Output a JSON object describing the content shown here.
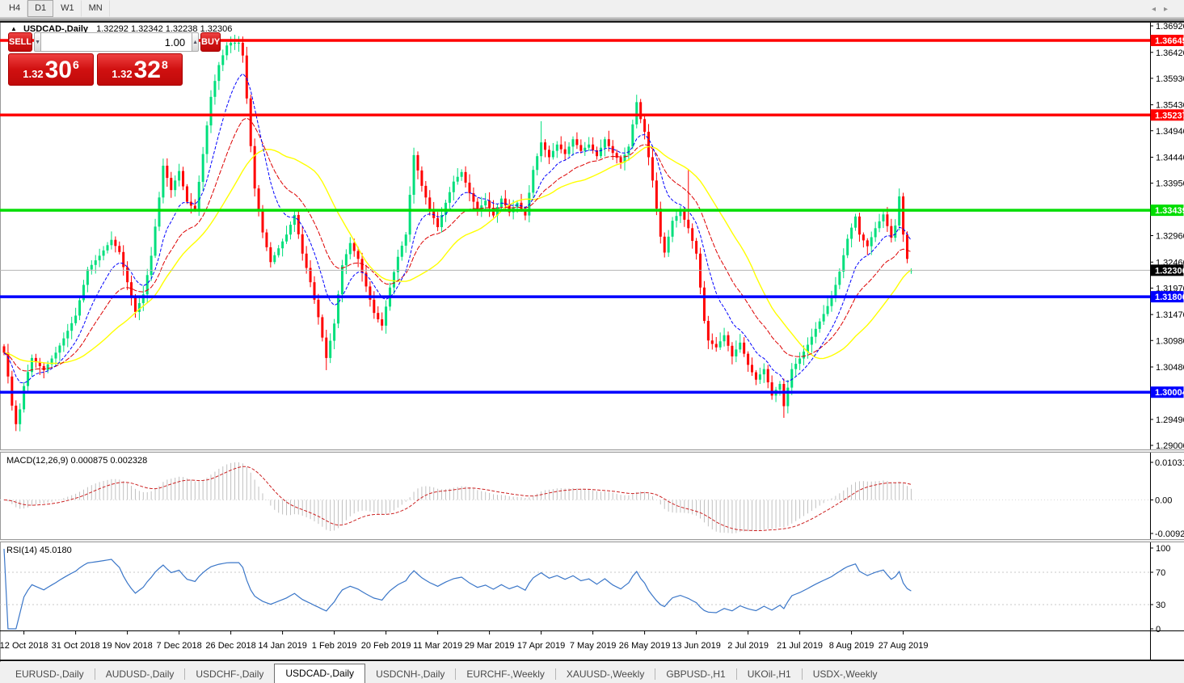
{
  "toolbar": {
    "timeframes": [
      {
        "label": "H4",
        "active": false
      },
      {
        "label": "D1",
        "active": true
      },
      {
        "label": "W1",
        "active": false
      },
      {
        "label": "MN",
        "active": false
      }
    ]
  },
  "chart": {
    "title_symbol": "USDCAD-,Daily",
    "title_ohlc": "1.32292 1.32342 1.32238 1.32306",
    "title_arrow": "▲"
  },
  "trade_panel": {
    "sell_label": "SELL",
    "buy_label": "BUY",
    "volume": "1.00",
    "spin_down": "▼",
    "spin_up": "▲",
    "sell_price": {
      "small": "1.32",
      "big": "30",
      "sup": "6"
    },
    "buy_price": {
      "small": "1.32",
      "big": "32",
      "sup": "8"
    }
  },
  "indicators": {
    "macd_label": "MACD(12,26,9) 0.000875 0.002328",
    "rsi_label": "RSI(14) 45.0180"
  },
  "colors": {
    "up_candle": "#00DF7C",
    "down_candle": "#FF0000",
    "ma_fast": "#0000FF",
    "ma_mid": "#DD0000",
    "ma_slow": "#FFFF00",
    "bid_line": "#B4B4B4",
    "macd_hist": "#C0C0C0",
    "macd_signal": "#CC2222",
    "rsi_line": "#3A76C8",
    "level_red": "#FF0000",
    "level_green": "#00DD00",
    "level_blue": "#0000FF",
    "bid_label_bg": "#000000"
  },
  "chart_data": {
    "type": "candlestick",
    "symbol": "USDCAD-,Daily",
    "last_candle": {
      "open": 1.32292,
      "high": 1.32342,
      "low": 1.32238,
      "close": 1.32306
    },
    "price_axis": {
      "top_value": 1.3692,
      "bottom_value": 1.29,
      "ticks": [
        "1.36920",
        "1.36420",
        "1.35930",
        "1.35430",
        "1.34940",
        "1.34440",
        "1.33950",
        "1.32960",
        "1.32460",
        "1.31970",
        "1.31470",
        "1.30980",
        "1.30480",
        "1.29490",
        "1.29000"
      ]
    },
    "levels": [
      {
        "price": 1.36645,
        "label": "1.36645",
        "color": "#FF0000",
        "name": "resistance-line-1"
      },
      {
        "price": 1.35237,
        "label": "1.35237",
        "color": "#FF0000",
        "name": "resistance-line-2"
      },
      {
        "price": 1.33439,
        "label": "1.33439",
        "color": "#00DD00",
        "name": "pivot-line"
      },
      {
        "price": 1.31806,
        "label": "1.31806",
        "color": "#0000FF",
        "name": "support-line-1"
      },
      {
        "price": 1.30004,
        "label": "1.30004",
        "color": "#0000FF",
        "name": "support-line-2"
      }
    ],
    "bid": {
      "price": 1.32306,
      "label": "1.32306"
    },
    "date_ticks": [
      {
        "i": 5,
        "label": "12 Oct 2018"
      },
      {
        "i": 18,
        "label": "31 Oct 2018"
      },
      {
        "i": 31,
        "label": "19 Nov 2018"
      },
      {
        "i": 44,
        "label": "7 Dec 2018"
      },
      {
        "i": 57,
        "label": "26 Dec 2018"
      },
      {
        "i": 70,
        "label": "14 Jan 2019"
      },
      {
        "i": 83,
        "label": "1 Feb 2019"
      },
      {
        "i": 96,
        "label": "20 Feb 2019"
      },
      {
        "i": 109,
        "label": "11 Mar 2019"
      },
      {
        "i": 122,
        "label": "29 Mar 2019"
      },
      {
        "i": 135,
        "label": "17 Apr 2019"
      },
      {
        "i": 148,
        "label": "7 May 2019"
      },
      {
        "i": 161,
        "label": "26 May 2019"
      },
      {
        "i": 174,
        "label": "13 Jun 2019"
      },
      {
        "i": 187,
        "label": "2 Jul 2019"
      },
      {
        "i": 200,
        "label": "21 Jul 2019"
      },
      {
        "i": 213,
        "label": "8 Aug 2019"
      },
      {
        "i": 226,
        "label": "27 Aug 2019"
      }
    ],
    "macd_axis": {
      "top": "0.010311",
      "zero": "0.00",
      "bottom": "-0.009203",
      "top_value": 0.010311,
      "bottom_value": -0.009203
    },
    "rsi_axis": {
      "ticks": [
        "100",
        "70",
        "30",
        "0"
      ],
      "upper": 70,
      "lower": 30
    },
    "waypoints": [
      [
        0,
        1.3075
      ],
      [
        1,
        1.303
      ],
      [
        2,
        1.2975
      ],
      [
        3,
        1.294,
        null,
        1.2927
      ],
      [
        4,
        1.2968
      ],
      [
        5,
        1.3012
      ],
      [
        7,
        1.3065
      ],
      [
        10,
        1.3042
      ],
      [
        13,
        1.3075
      ],
      [
        15,
        1.3102
      ],
      [
        18,
        1.3145
      ],
      [
        21,
        1.3232
      ],
      [
        24,
        1.3258
      ],
      [
        27,
        1.3288
      ],
      [
        29,
        1.3265
      ],
      [
        31,
        1.3208
      ],
      [
        33,
        1.3152
      ],
      [
        35,
        1.3185
      ],
      [
        37,
        1.3258
      ],
      [
        39,
        1.3368
      ],
      [
        40,
        1.3428
      ],
      [
        42,
        1.3382
      ],
      [
        44,
        1.3418
      ],
      [
        46,
        1.336
      ],
      [
        48,
        1.3345
      ],
      [
        50,
        1.345
      ],
      [
        52,
        1.3558
      ],
      [
        54,
        1.3618
      ],
      [
        56,
        1.3655
      ],
      [
        57,
        1.366,
        1.3672
      ],
      [
        59,
        1.366
      ],
      [
        60,
        1.3636
      ],
      [
        61,
        1.3555
      ],
      [
        62,
        1.3465
      ],
      [
        63,
        1.3385
      ],
      [
        65,
        1.3302
      ],
      [
        67,
        1.3246
      ],
      [
        69,
        1.3272
      ],
      [
        71,
        1.3298
      ],
      [
        73,
        1.3335
      ],
      [
        75,
        1.3262
      ],
      [
        77,
        1.3208
      ],
      [
        79,
        1.3142
      ],
      [
        81,
        1.3065,
        null,
        1.3042
      ],
      [
        83,
        1.313
      ],
      [
        85,
        1.324
      ],
      [
        87,
        1.3282
      ],
      [
        89,
        1.3252
      ],
      [
        91,
        1.32
      ],
      [
        93,
        1.315
      ],
      [
        95,
        1.3126
      ],
      [
        97,
        1.3198
      ],
      [
        99,
        1.3256
      ],
      [
        101,
        1.3298
      ],
      [
        103,
        1.3448,
        1.3462
      ],
      [
        105,
        1.339
      ],
      [
        107,
        1.3346
      ],
      [
        109,
        1.3312
      ],
      [
        111,
        1.3358
      ],
      [
        113,
        1.3398
      ],
      [
        115,
        1.3416
      ],
      [
        117,
        1.3376
      ],
      [
        119,
        1.3344
      ],
      [
        121,
        1.3362
      ],
      [
        123,
        1.3334
      ],
      [
        125,
        1.3366
      ],
      [
        127,
        1.334
      ],
      [
        129,
        1.3358
      ],
      [
        131,
        1.3334
      ],
      [
        133,
        1.342
      ],
      [
        135,
        1.3472,
        1.3512
      ],
      [
        137,
        1.3444
      ],
      [
        139,
        1.3468
      ],
      [
        141,
        1.345
      ],
      [
        143,
        1.3478
      ],
      [
        145,
        1.3456
      ],
      [
        147,
        1.3468
      ],
      [
        149,
        1.3446
      ],
      [
        151,
        1.3478
      ],
      [
        153,
        1.3452
      ],
      [
        155,
        1.3434
      ],
      [
        157,
        1.3464
      ],
      [
        159,
        1.3548,
        1.3562
      ],
      [
        160,
        1.3516
      ],
      [
        161,
        1.3492
      ],
      [
        162,
        1.3444
      ],
      [
        163,
        1.34
      ],
      [
        165,
        1.3294
      ],
      [
        166,
        1.3264
      ],
      [
        168,
        1.3324
      ],
      [
        170,
        1.3342
      ],
      [
        172,
        1.331,
        1.342
      ],
      [
        174,
        1.3262
      ],
      [
        175,
        1.3198
      ],
      [
        176,
        1.3135
      ],
      [
        177,
        1.3098
      ],
      [
        179,
        1.3085
      ],
      [
        181,
        1.3108
      ],
      [
        183,
        1.3068
      ],
      [
        185,
        1.3094
      ],
      [
        187,
        1.3052
      ],
      [
        189,
        1.3024
      ],
      [
        191,
        1.3044
      ],
      [
        193,
        1.2994
      ],
      [
        195,
        1.3016
      ],
      [
        196,
        1.2974,
        null,
        1.2952
      ],
      [
        198,
        1.3044
      ],
      [
        200,
        1.3064
      ],
      [
        202,
        1.309
      ],
      [
        204,
        1.312
      ],
      [
        206,
        1.3148
      ],
      [
        208,
        1.3178
      ],
      [
        210,
        1.3228
      ],
      [
        212,
        1.329
      ],
      [
        214,
        1.3332
      ],
      [
        215,
        1.3298
      ],
      [
        217,
        1.3276
      ],
      [
        219,
        1.331
      ],
      [
        221,
        1.3336
      ],
      [
        223,
        1.3292
      ],
      [
        224,
        1.3315
      ],
      [
        225,
        1.337,
        1.3385
      ],
      [
        226,
        1.3298
      ],
      [
        227,
        1.3252
      ],
      [
        228,
        1.32306
      ]
    ],
    "render_hints": {
      "candles": 229,
      "ma_fast": 10,
      "ma_mid": 21,
      "ma_slow": 30,
      "macd_fast": 12,
      "macd_slow": 26,
      "macd_signal": 9,
      "rsi_period": 14,
      "seed": 7
    }
  },
  "tabbar": {
    "tabs": [
      {
        "label": "EURUSD-,Daily",
        "active": false
      },
      {
        "label": "AUDUSD-,Daily",
        "active": false
      },
      {
        "label": "USDCHF-,Daily",
        "active": false
      },
      {
        "label": "USDCAD-,Daily",
        "active": true
      },
      {
        "label": "USDCNH-,Daily",
        "active": false
      },
      {
        "label": "EURCHF-,Weekly",
        "active": false
      },
      {
        "label": "XAUUSD-,Weekly",
        "active": false
      },
      {
        "label": "GBPUSD-,H1",
        "active": false
      },
      {
        "label": "UKOil-,H1",
        "active": false
      },
      {
        "label": "USDX-,Weekly",
        "active": false
      }
    ],
    "left_arrow": "◂",
    "right_arrow": "▸"
  }
}
